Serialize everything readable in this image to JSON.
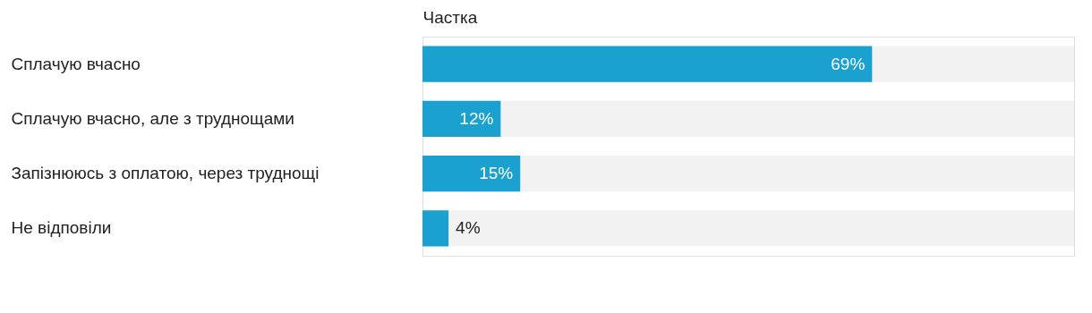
{
  "chart_data": {
    "type": "bar",
    "orientation": "horizontal",
    "xlabel": "Частка",
    "categories": [
      "Сплачую вчасно",
      "Сплачую вчасно, але з труднощами",
      "Запізнююсь з оплатою, через труднощі",
      "Не відповіли"
    ],
    "values": [
      69,
      12,
      15,
      4
    ],
    "color": "#1aa1cf",
    "value_labels": [
      "69%",
      "12%",
      "15%",
      "4%"
    ],
    "xlim": [
      0,
      100
    ],
    "tick_labels": "y",
    "grid": false,
    "legend": false
  }
}
